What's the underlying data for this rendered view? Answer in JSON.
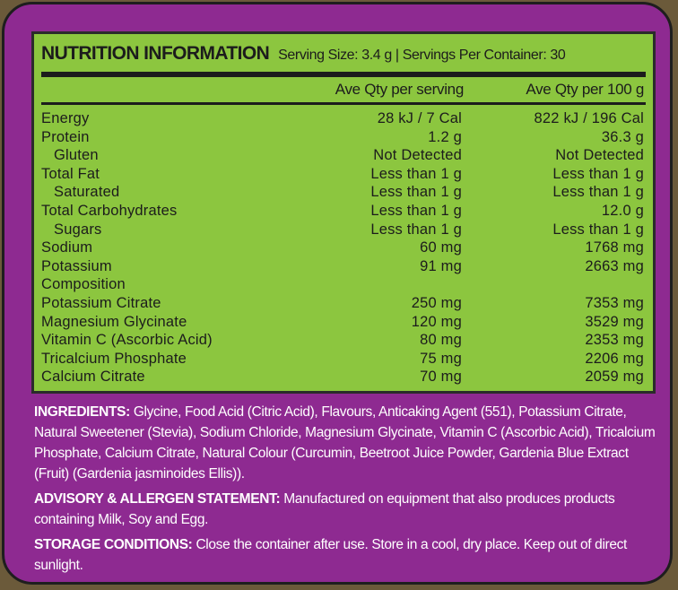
{
  "title": "NUTRITION INFORMATION",
  "serving_info": "Serving Size: 3.4 g | Servings Per Container: 30",
  "columns": [
    "Ave Qty per serving",
    "Ave Qty per 100 g"
  ],
  "rows": [
    {
      "label": "Energy",
      "indent": false,
      "per_serving": "28 kJ / 7 Cal",
      "per_100g": "822 kJ / 196 Cal"
    },
    {
      "label": "Protein",
      "indent": false,
      "per_serving": "1.2 g",
      "per_100g": "36.3 g"
    },
    {
      "label": "Gluten",
      "indent": true,
      "per_serving": "Not Detected",
      "per_100g": "Not Detected"
    },
    {
      "label": "Total Fat",
      "indent": false,
      "per_serving": "Less than 1 g",
      "per_100g": "Less than 1 g"
    },
    {
      "label": "Saturated",
      "indent": true,
      "per_serving": "Less than 1 g",
      "per_100g": "Less than 1 g"
    },
    {
      "label": "Total Carbohydrates",
      "indent": false,
      "per_serving": "Less than 1 g",
      "per_100g": "12.0 g"
    },
    {
      "label": "Sugars",
      "indent": true,
      "per_serving": "Less than 1 g",
      "per_100g": "Less than 1 g"
    },
    {
      "label": "Sodium",
      "indent": false,
      "per_serving": "60 mg",
      "per_100g": "1768 mg"
    },
    {
      "label": "Potassium",
      "indent": false,
      "per_serving": "91 mg",
      "per_100g": "2663 mg"
    },
    {
      "label": "Composition",
      "indent": false,
      "per_serving": "",
      "per_100g": ""
    },
    {
      "label": "Potassium Citrate",
      "indent": false,
      "per_serving": "250 mg",
      "per_100g": "7353 mg"
    },
    {
      "label": "Magnesium Glycinate",
      "indent": false,
      "per_serving": "120 mg",
      "per_100g": "3529 mg"
    },
    {
      "label": "Vitamin C (Ascorbic Acid)",
      "indent": false,
      "per_serving": "80 mg",
      "per_100g": "2353 mg"
    },
    {
      "label": "Tricalcium Phosphate",
      "indent": false,
      "per_serving": "75 mg",
      "per_100g": "2206 mg"
    },
    {
      "label": "Calcium Citrate",
      "indent": false,
      "per_serving": "70 mg",
      "per_100g": "2059 mg"
    }
  ],
  "ingredients": {
    "heading": "INGREDIENTS:",
    "text": " Glycine, Food Acid (Citric Acid), Flavours, Anticaking Agent (551), Potassium Citrate, Natural Sweetener (Stevia), Sodium Chloride, Magnesium Glycinate, Vitamin C (Ascorbic Acid), Tricalcium Phosphate, Calcium Citrate, Natural Colour (Curcumin, Beetroot Juice Powder, Gardenia Blue Extract (Fruit) (Gardenia jasminoides Ellis))."
  },
  "advisory": {
    "heading": "ADVISORY & ALLERGEN STATEMENT:",
    "text": " Manufactured on equipment that also produces products containing Milk, Soy and Egg."
  },
  "storage": {
    "heading": "STORAGE CONDITIONS:",
    "text": " Close the container after use. Store in a cool, dry place. Keep out of direct sunlight."
  },
  "colors": {
    "panel": "#8e2a91",
    "table": "#8cc63f"
  }
}
